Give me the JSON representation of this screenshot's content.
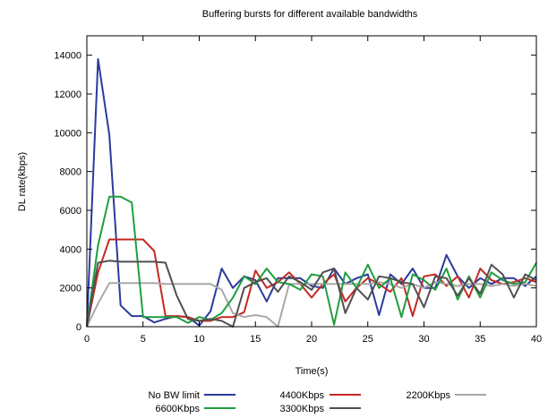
{
  "chart_data": {
    "type": "line",
    "title": "Buffering bursts for different available bandwidths",
    "xlabel": "Time(s)",
    "ylabel": "DL rate(kbps)",
    "xlim": [
      0,
      40
    ],
    "ylim": [
      0,
      15000
    ],
    "x_ticks": [
      0,
      5,
      10,
      15,
      20,
      25,
      30,
      35,
      40
    ],
    "y_ticks": [
      0,
      2000,
      4000,
      6000,
      8000,
      10000,
      12000,
      14000
    ],
    "grid": false,
    "legend_position": "bottom",
    "series": [
      {
        "name": "No BW limit",
        "color": "#2b3a9e",
        "points": [
          [
            0,
            0
          ],
          [
            1,
            13800
          ],
          [
            2,
            9900
          ],
          [
            3,
            1100
          ],
          [
            4,
            550
          ],
          [
            5,
            550
          ],
          [
            6,
            220
          ],
          [
            7,
            400
          ],
          [
            8,
            550
          ],
          [
            9,
            500
          ],
          [
            10,
            60
          ],
          [
            11,
            800
          ],
          [
            12,
            3000
          ],
          [
            13,
            2000
          ],
          [
            14,
            2600
          ],
          [
            15,
            2400
          ],
          [
            16,
            1300
          ],
          [
            17,
            2500
          ],
          [
            18,
            2500
          ],
          [
            19,
            2500
          ],
          [
            20,
            2100
          ],
          [
            21,
            2000
          ],
          [
            22,
            3000
          ],
          [
            23,
            2200
          ],
          [
            24,
            2500
          ],
          [
            25,
            2700
          ],
          [
            26,
            600
          ],
          [
            27,
            2700
          ],
          [
            28,
            2200
          ],
          [
            29,
            3000
          ],
          [
            30,
            2000
          ],
          [
            31,
            2000
          ],
          [
            32,
            3700
          ],
          [
            33,
            2600
          ],
          [
            34,
            2000
          ],
          [
            35,
            2500
          ],
          [
            36,
            2200
          ],
          [
            37,
            2500
          ],
          [
            38,
            2500
          ],
          [
            39,
            2100
          ],
          [
            40,
            2600
          ]
        ]
      },
      {
        "name": "4400Kbps",
        "color": "#c42a22",
        "points": [
          [
            0,
            0
          ],
          [
            1,
            2800
          ],
          [
            2,
            4500
          ],
          [
            3,
            4500
          ],
          [
            4,
            4500
          ],
          [
            5,
            4500
          ],
          [
            6,
            3900
          ],
          [
            7,
            550
          ],
          [
            8,
            550
          ],
          [
            9,
            500
          ],
          [
            10,
            300
          ],
          [
            11,
            300
          ],
          [
            12,
            500
          ],
          [
            13,
            500
          ],
          [
            14,
            750
          ],
          [
            15,
            2900
          ],
          [
            16,
            2000
          ],
          [
            17,
            2300
          ],
          [
            18,
            2800
          ],
          [
            19,
            2200
          ],
          [
            20,
            1500
          ],
          [
            21,
            2200
          ],
          [
            22,
            2700
          ],
          [
            23,
            1300
          ],
          [
            24,
            2000
          ],
          [
            25,
            2500
          ],
          [
            26,
            2200
          ],
          [
            27,
            1800
          ],
          [
            28,
            2500
          ],
          [
            29,
            550
          ],
          [
            30,
            2600
          ],
          [
            31,
            2700
          ],
          [
            32,
            2100
          ],
          [
            33,
            2600
          ],
          [
            34,
            1500
          ],
          [
            35,
            3000
          ],
          [
            36,
            2400
          ],
          [
            37,
            2200
          ],
          [
            38,
            2300
          ],
          [
            39,
            2500
          ],
          [
            40,
            2300
          ]
        ]
      },
      {
        "name": "2200Kbps",
        "color": "#a8a8a8",
        "points": [
          [
            0,
            0
          ],
          [
            1,
            1200
          ],
          [
            2,
            2250
          ],
          [
            3,
            2250
          ],
          [
            4,
            2250
          ],
          [
            5,
            2250
          ],
          [
            6,
            2250
          ],
          [
            7,
            2200
          ],
          [
            8,
            2200
          ],
          [
            9,
            2200
          ],
          [
            10,
            2200
          ],
          [
            11,
            2200
          ],
          [
            12,
            1900
          ],
          [
            13,
            700
          ],
          [
            14,
            500
          ],
          [
            15,
            600
          ],
          [
            16,
            500
          ],
          [
            17,
            0
          ],
          [
            18,
            2200
          ],
          [
            19,
            2200
          ],
          [
            20,
            2200
          ],
          [
            21,
            2200
          ],
          [
            22,
            2200
          ],
          [
            23,
            2200
          ],
          [
            24,
            2200
          ],
          [
            25,
            2200
          ],
          [
            26,
            2300
          ],
          [
            27,
            2200
          ],
          [
            28,
            2000
          ],
          [
            29,
            2200
          ],
          [
            30,
            2000
          ],
          [
            31,
            2300
          ],
          [
            32,
            2200
          ],
          [
            33,
            2100
          ],
          [
            34,
            2200
          ],
          [
            35,
            2200
          ],
          [
            36,
            2100
          ],
          [
            37,
            2200
          ],
          [
            38,
            2100
          ],
          [
            39,
            2200
          ],
          [
            40,
            2100
          ]
        ]
      },
      {
        "name": "6600Kbps",
        "color": "#1e9e3e",
        "points": [
          [
            0,
            0
          ],
          [
            1,
            4200
          ],
          [
            2,
            6700
          ],
          [
            3,
            6700
          ],
          [
            4,
            6400
          ],
          [
            5,
            500
          ],
          [
            6,
            500
          ],
          [
            7,
            500
          ],
          [
            8,
            500
          ],
          [
            9,
            200
          ],
          [
            10,
            500
          ],
          [
            11,
            350
          ],
          [
            12,
            700
          ],
          [
            13,
            1500
          ],
          [
            14,
            2600
          ],
          [
            15,
            2200
          ],
          [
            16,
            3000
          ],
          [
            17,
            2300
          ],
          [
            18,
            2200
          ],
          [
            19,
            1900
          ],
          [
            20,
            2700
          ],
          [
            21,
            2600
          ],
          [
            22,
            100
          ],
          [
            23,
            2800
          ],
          [
            24,
            2000
          ],
          [
            25,
            3200
          ],
          [
            26,
            2000
          ],
          [
            27,
            2500
          ],
          [
            28,
            500
          ],
          [
            29,
            2700
          ],
          [
            30,
            2400
          ],
          [
            31,
            1900
          ],
          [
            32,
            3000
          ],
          [
            33,
            1400
          ],
          [
            34,
            2600
          ],
          [
            35,
            1500
          ],
          [
            36,
            2800
          ],
          [
            37,
            2400
          ],
          [
            38,
            2200
          ],
          [
            39,
            2300
          ],
          [
            40,
            3300
          ]
        ]
      },
      {
        "name": "3300Kbps",
        "color": "#505050",
        "points": [
          [
            0,
            0
          ],
          [
            1,
            3300
          ],
          [
            2,
            3400
          ],
          [
            3,
            3350
          ],
          [
            4,
            3350
          ],
          [
            5,
            3350
          ],
          [
            6,
            3350
          ],
          [
            7,
            3300
          ],
          [
            8,
            1600
          ],
          [
            9,
            400
          ],
          [
            10,
            300
          ],
          [
            11,
            400
          ],
          [
            12,
            300
          ],
          [
            13,
            0
          ],
          [
            14,
            2000
          ],
          [
            15,
            2300
          ],
          [
            16,
            2500
          ],
          [
            17,
            1800
          ],
          [
            18,
            2600
          ],
          [
            19,
            2300
          ],
          [
            20,
            1900
          ],
          [
            21,
            2800
          ],
          [
            22,
            3000
          ],
          [
            23,
            700
          ],
          [
            24,
            2000
          ],
          [
            25,
            1400
          ],
          [
            26,
            2600
          ],
          [
            27,
            2500
          ],
          [
            28,
            2300
          ],
          [
            29,
            2200
          ],
          [
            30,
            1000
          ],
          [
            31,
            2600
          ],
          [
            32,
            2500
          ],
          [
            33,
            1600
          ],
          [
            34,
            2500
          ],
          [
            35,
            1700
          ],
          [
            36,
            3200
          ],
          [
            37,
            2700
          ],
          [
            38,
            1500
          ],
          [
            39,
            2700
          ],
          [
            40,
            2400
          ]
        ]
      }
    ]
  }
}
